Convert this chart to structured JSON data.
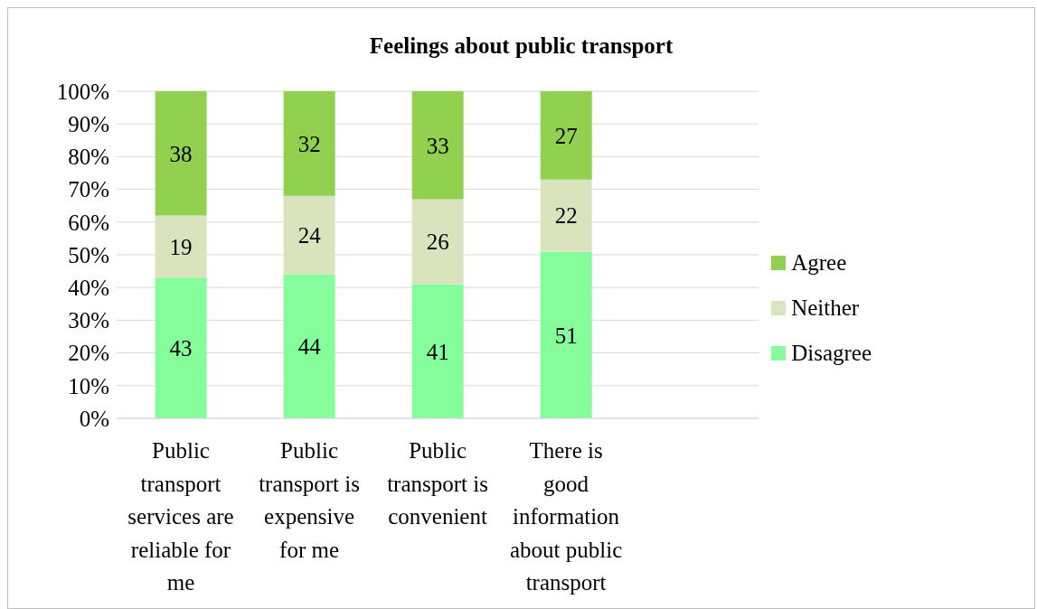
{
  "chart_data": {
    "type": "bar",
    "title": "Feelings about public transport",
    "stacked": true,
    "categories": [
      "Public transport services are reliable for me",
      "Public transport is expensive for me",
      "Public transport is convenient",
      "There is good information about public transport",
      null
    ],
    "series": [
      {
        "name": "Disagree",
        "color": "#86fd9b",
        "values": [
          43,
          44,
          41,
          51,
          null
        ]
      },
      {
        "name": "Neither",
        "color": "#d9e4bf",
        "values": [
          19,
          24,
          26,
          22,
          null
        ]
      },
      {
        "name": "Agree",
        "color": "#92d050",
        "values": [
          38,
          32,
          33,
          27,
          null
        ]
      }
    ],
    "ylim": [
      0,
      100
    ],
    "yticks": [
      {
        "value": 0,
        "label": "0%"
      },
      {
        "value": 10,
        "label": "10%"
      },
      {
        "value": 20,
        "label": "20%"
      },
      {
        "value": 30,
        "label": "30%"
      },
      {
        "value": 40,
        "label": "40%"
      },
      {
        "value": 50,
        "label": "50%"
      },
      {
        "value": 60,
        "label": "60%"
      },
      {
        "value": 70,
        "label": "70%"
      },
      {
        "value": 80,
        "label": "80%"
      },
      {
        "value": 90,
        "label": "90%"
      },
      {
        "value": 100,
        "label": "100%"
      }
    ],
    "grid": "y",
    "legend": "right",
    "data_labels": true
  }
}
